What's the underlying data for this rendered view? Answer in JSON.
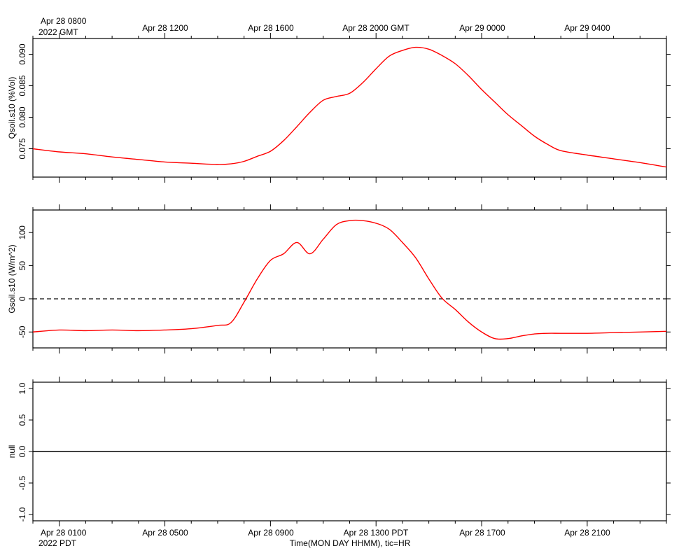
{
  "top_axis": {
    "first_label_line1": "Apr 28 0800",
    "first_label_line2": "2022 GMT",
    "labels": [
      "Apr 28 1200",
      "Apr 28 1600",
      "Apr 28 2000 GMT",
      "Apr 29 0000",
      "Apr 29 0400"
    ]
  },
  "bottom_axis": {
    "first_label_line1": "Apr 28 0100",
    "first_label_line2": "2022 PDT",
    "labels": [
      "Apr 28 0500",
      "Apr 28 0900",
      "Apr 28 1300 PDT",
      "Apr 28 1700",
      "Apr 28 2100"
    ],
    "title": "Time(MON DAY HHMM), tic=HR"
  },
  "colors": {
    "series": "#ff0000",
    "axes": "#000000",
    "background": "#ffffff"
  },
  "chart_data": [
    {
      "type": "line",
      "ylabel": "Qsoil.s10 (%Vol)",
      "x_units": "hours after 2022-04-28 00:00 PDT",
      "xlim": [
        0,
        24
      ],
      "ylim": [
        0.0705,
        0.0925
      ],
      "yticks": [
        0.075,
        0.08,
        0.085,
        0.09
      ],
      "ytick_labels": [
        "0.075",
        "0.080",
        "0.085",
        "0.090"
      ],
      "series": [
        {
          "x": [
            0,
            1,
            2,
            3,
            4,
            5,
            6,
            7,
            7.5,
            8,
            8.5,
            9,
            9.5,
            10,
            10.5,
            11,
            11.5,
            12,
            12.5,
            13,
            13.5,
            14,
            14.5,
            15,
            15.5,
            16,
            16.5,
            17,
            17.5,
            18,
            18.5,
            19,
            19.5,
            20,
            21,
            22,
            23,
            24
          ],
          "y": [
            0.075,
            0.0745,
            0.0742,
            0.0737,
            0.0733,
            0.0729,
            0.0727,
            0.0725,
            0.0726,
            0.073,
            0.0738,
            0.0746,
            0.0763,
            0.0785,
            0.0808,
            0.0827,
            0.0833,
            0.0838,
            0.0855,
            0.0877,
            0.0897,
            0.0906,
            0.0911,
            0.0908,
            0.0898,
            0.0885,
            0.0866,
            0.0844,
            0.0824,
            0.0804,
            0.0787,
            0.077,
            0.0757,
            0.0747,
            0.074,
            0.0734,
            0.0728,
            0.0721
          ]
        }
      ]
    },
    {
      "type": "line",
      "ylabel": "Gsoil.s10 (W/m^2)",
      "x_units": "hours after 2022-04-28 00:00 PDT",
      "xlim": [
        0,
        24
      ],
      "ylim": [
        -74,
        134
      ],
      "yticks": [
        -50,
        0,
        50,
        100
      ],
      "ytick_labels": [
        "-50",
        "0",
        "50",
        "100"
      ],
      "reference_line": {
        "y": 0,
        "style": "dashed"
      },
      "series": [
        {
          "x": [
            0,
            1,
            2,
            3,
            4,
            5,
            6,
            7,
            7.5,
            8,
            8.5,
            9,
            9.5,
            10,
            10.5,
            11,
            11.5,
            12,
            12.5,
            13,
            13.5,
            14,
            14.5,
            15,
            15.5,
            16,
            16.5,
            17,
            17.5,
            18,
            18.5,
            19,
            19.5,
            20,
            21,
            22,
            23,
            24
          ],
          "y": [
            -50,
            -47,
            -48,
            -47,
            -48,
            -47,
            -45,
            -40,
            -36,
            -5,
            30,
            58,
            68,
            85,
            68,
            90,
            112,
            118,
            118,
            114,
            105,
            85,
            62,
            30,
            1,
            -16,
            -35,
            -50,
            -60,
            -60,
            -56,
            -53,
            -52,
            -52,
            -52,
            -51,
            -50,
            -49
          ]
        }
      ]
    },
    {
      "type": "line",
      "ylabel": "null",
      "x_units": "hours after 2022-04-28 00:00 PDT",
      "xlim": [
        0,
        24
      ],
      "ylim": [
        -1.1,
        1.1
      ],
      "yticks": [
        -1.0,
        -0.5,
        0.0,
        0.5,
        1.0
      ],
      "ytick_labels": [
        "-1.0",
        "-0.5",
        "0.0",
        "0.5",
        "1.0"
      ],
      "series": [
        {
          "x": [
            0,
            24
          ],
          "y": [
            0,
            0
          ]
        }
      ]
    }
  ]
}
